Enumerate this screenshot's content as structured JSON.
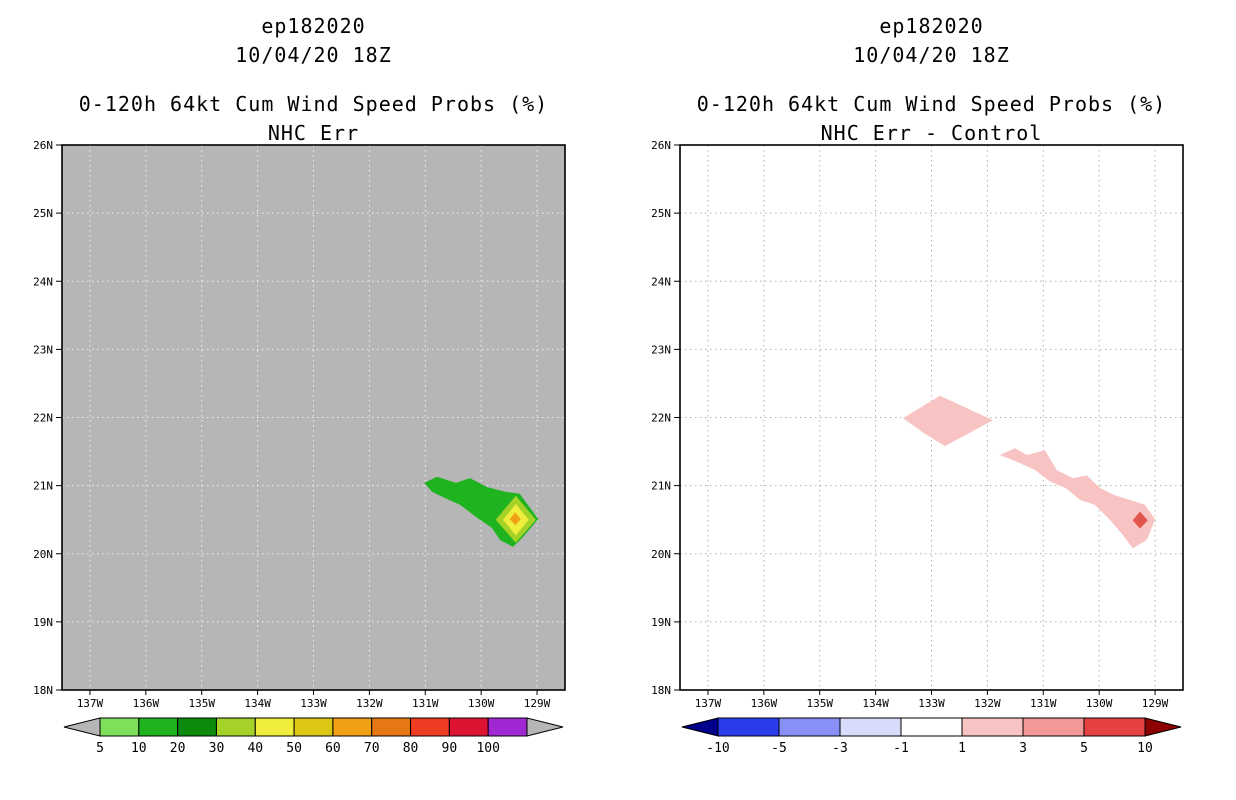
{
  "panels": [
    {
      "storm_id": "ep182020",
      "run_time": "10/04/20 18Z",
      "product_title": "0-120h 64kt Cum Wind Speed Probs (%)",
      "product_subtitle": "NHC Err"
    },
    {
      "storm_id": "ep182020",
      "run_time": "10/04/20 18Z",
      "product_title": "0-120h 64kt Cum Wind Speed Probs (%)",
      "product_subtitle": "NHC Err - Control"
    }
  ],
  "chart_data": [
    {
      "type": "heatmap",
      "subtype": "filled-contour-probability-map",
      "title": "ep182020 10/04/20 18Z",
      "subtitle": "0-120h 64kt Cum Wind Speed Probs (%) NHC Err",
      "units": "percent",
      "map_background": "#b6b6b6",
      "grid_color": "#f2f2f2",
      "grid_style": "dotted",
      "lat_axis": {
        "labels": [
          "26N",
          "25N",
          "24N",
          "23N",
          "22N",
          "21N",
          "20N",
          "19N",
          "18N"
        ],
        "range_deg_north": [
          18,
          26
        ]
      },
      "lon_axis": {
        "labels": [
          "137W",
          "136W",
          "135W",
          "134W",
          "133W",
          "132W",
          "131W",
          "130W",
          "129W"
        ],
        "range_deg_west": [
          137.5,
          128.5
        ]
      },
      "contours": [
        {
          "level_pct": 10,
          "color": "#1fb41f",
          "polygon_lon_lat": [
            [
              131.02,
              21.04
            ],
            [
              130.79,
              21.13
            ],
            [
              130.45,
              21.04
            ],
            [
              130.2,
              21.11
            ],
            [
              129.9,
              20.98
            ],
            [
              129.57,
              20.91
            ],
            [
              129.31,
              20.88
            ],
            [
              128.98,
              20.51
            ],
            [
              129.27,
              20.23
            ],
            [
              129.43,
              20.1
            ],
            [
              129.66,
              20.2
            ],
            [
              129.81,
              20.38
            ],
            [
              130.06,
              20.52
            ],
            [
              130.38,
              20.72
            ],
            [
              130.68,
              20.83
            ],
            [
              130.88,
              20.91
            ]
          ]
        },
        {
          "level_pct": 30,
          "color": "#a4d228",
          "polygon_lon_lat": [
            [
              129.74,
              20.5
            ],
            [
              129.38,
              20.85
            ],
            [
              129.02,
              20.5
            ],
            [
              129.38,
              20.16
            ]
          ]
        },
        {
          "level_pct": 40,
          "color": "#f0ee3c",
          "polygon_lon_lat": [
            [
              129.61,
              20.5
            ],
            [
              129.38,
              20.73
            ],
            [
              129.15,
              20.5
            ],
            [
              129.38,
              20.27
            ]
          ]
        },
        {
          "level_pct": 60,
          "color": "#f0a014",
          "polygon_lon_lat": [
            [
              129.49,
              20.51
            ],
            [
              129.39,
              20.61
            ],
            [
              129.29,
              20.51
            ],
            [
              129.39,
              20.42
            ]
          ]
        }
      ],
      "colorbar": {
        "boundary_labels": [
          "5",
          "10",
          "20",
          "30",
          "40",
          "50",
          "60",
          "70",
          "80",
          "90",
          "100"
        ],
        "cell_colors": [
          "#7ee05a",
          "#1fb41f",
          "#0c8a0c",
          "#a4d228",
          "#f0ee3c",
          "#dcc814",
          "#f0a014",
          "#e67814",
          "#ee3c22",
          "#dc1432",
          "#a028d2"
        ],
        "left_arrow_color": "#b6b6b6",
        "right_arrow_color": "#b6b6b6"
      }
    },
    {
      "type": "heatmap",
      "subtype": "filled-contour-difference-map",
      "title": "ep182020 10/04/20 18Z",
      "subtitle": "0-120h 64kt Cum Wind Speed Probs (%) NHC Err - Control",
      "units": "percent difference",
      "map_background": "#ffffff",
      "grid_color": "#b0b0b0",
      "grid_style": "dotted",
      "lat_axis": {
        "labels": [
          "26N",
          "25N",
          "24N",
          "23N",
          "22N",
          "21N",
          "20N",
          "19N",
          "18N"
        ],
        "range_deg_north": [
          18,
          26
        ]
      },
      "lon_axis": {
        "labels": [
          "137W",
          "136W",
          "135W",
          "134W",
          "133W",
          "132W",
          "131W",
          "130W",
          "129W"
        ],
        "range_deg_west": [
          137.5,
          128.5
        ]
      },
      "contours": [
        {
          "level_pct": 1,
          "color": "#f8c3c3",
          "polygon_lon_lat": [
            [
              133.51,
              21.99
            ],
            [
              132.85,
              22.32
            ],
            [
              131.9,
              21.96
            ],
            [
              132.76,
              21.58
            ],
            [
              133.15,
              21.78
            ]
          ]
        },
        {
          "level_pct": 1,
          "color": "#f8c3c3",
          "polygon_lon_lat": [
            [
              131.78,
              21.45
            ],
            [
              131.51,
              21.55
            ],
            [
              131.29,
              21.45
            ],
            [
              130.97,
              21.52
            ],
            [
              130.76,
              21.23
            ],
            [
              130.47,
              21.11
            ],
            [
              130.22,
              21.15
            ],
            [
              129.99,
              20.97
            ],
            [
              129.72,
              20.86
            ],
            [
              129.18,
              20.72
            ],
            [
              129.0,
              20.5
            ],
            [
              129.15,
              20.2
            ],
            [
              129.4,
              20.08
            ],
            [
              129.58,
              20.28
            ],
            [
              129.81,
              20.5
            ],
            [
              130.08,
              20.72
            ],
            [
              130.34,
              20.79
            ],
            [
              130.61,
              20.97
            ],
            [
              130.88,
              21.06
            ],
            [
              131.15,
              21.23
            ],
            [
              131.47,
              21.35
            ]
          ]
        },
        {
          "level_pct": 5,
          "color": "#e2564c",
          "polygon_lon_lat": [
            [
              129.4,
              20.49
            ],
            [
              129.27,
              20.62
            ],
            [
              129.13,
              20.49
            ],
            [
              129.27,
              20.37
            ]
          ]
        }
      ],
      "colorbar": {
        "boundary_labels": [
          "-10",
          "-5",
          "-3",
          "-1",
          "1",
          "3",
          "5",
          "10"
        ],
        "cell_colors": [
          "#2a3cec",
          "#8890f8",
          "#d8dcfc",
          "#ffffff",
          "#f8c3c3",
          "#f29898",
          "#e64242"
        ],
        "left_arrow_color": "#00008c",
        "right_arrow_color": "#8c0000"
      }
    }
  ]
}
